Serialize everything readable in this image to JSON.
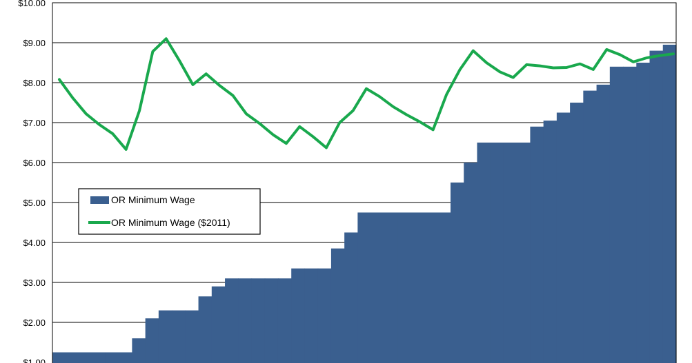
{
  "chart_data": {
    "type": "area",
    "y_axis": {
      "ticks": [
        "$1.00",
        "$2.00",
        "$3.00",
        "$4.00",
        "$5.00",
        "$6.00",
        "$7.00",
        "$8.00",
        "$9.00",
        "$10.00"
      ],
      "tick_values": [
        1,
        2,
        3,
        4,
        5,
        6,
        7,
        8,
        9,
        10
      ],
      "ylim": [
        1,
        10
      ]
    },
    "grid": "horizontal",
    "legend_position": "left-middle",
    "legend": {
      "items": [
        {
          "label": "OR Minimum Wage",
          "kind": "area"
        },
        {
          "label": "OR Minimum Wage ($2011)",
          "kind": "line"
        }
      ]
    },
    "colors": {
      "area": "#3a5f8f",
      "line": "#19a84d",
      "plot_border": "#000000"
    },
    "series": [
      {
        "name": "OR Minimum Wage",
        "type": "area-step",
        "values": [
          1.25,
          1.25,
          1.25,
          1.25,
          1.25,
          1.25,
          1.6,
          2.1,
          2.3,
          2.3,
          2.3,
          2.65,
          2.9,
          3.1,
          3.1,
          3.1,
          3.1,
          3.1,
          3.35,
          3.35,
          3.35,
          3.85,
          4.25,
          4.75,
          4.75,
          4.75,
          4.75,
          4.75,
          4.75,
          4.75,
          5.5,
          6.0,
          6.5,
          6.5,
          6.5,
          6.5,
          6.9,
          7.05,
          7.25,
          7.5,
          7.8,
          7.95,
          8.4,
          8.4,
          8.5,
          8.8,
          8.95
        ]
      },
      {
        "name": "OR Minimum Wage ($2011)",
        "type": "line",
        "values": [
          8.08,
          7.62,
          7.22,
          6.95,
          6.72,
          6.33,
          7.3,
          8.78,
          9.1,
          8.55,
          7.95,
          8.22,
          7.93,
          7.68,
          7.22,
          6.98,
          6.7,
          6.48,
          6.9,
          6.65,
          6.37,
          7.0,
          7.3,
          7.85,
          7.65,
          7.4,
          7.2,
          7.02,
          6.82,
          7.7,
          8.32,
          8.8,
          8.5,
          8.27,
          8.13,
          8.45,
          8.42,
          8.37,
          8.38,
          8.47,
          8.33,
          8.83,
          8.7,
          8.52,
          8.62,
          8.68,
          8.72
        ]
      }
    ]
  }
}
